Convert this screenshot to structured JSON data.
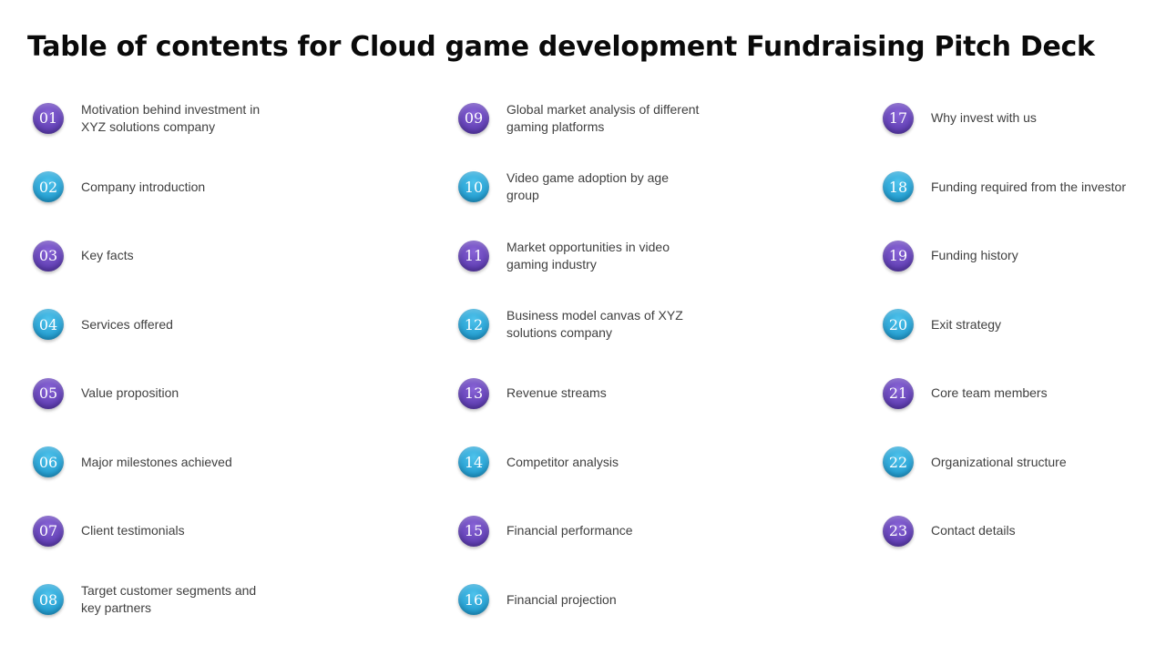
{
  "title": "Table of contents for Cloud game development Fundraising Pitch Deck",
  "colors": {
    "purple": "#5d3cb0",
    "blue": "#229ccf"
  },
  "columns": [
    [
      {
        "num": "01",
        "label": "Motivation behind investment in XYZ solutions company",
        "color": "purple"
      },
      {
        "num": "02",
        "label": "Company introduction",
        "color": "blue"
      },
      {
        "num": "03",
        "label": "Key facts",
        "color": "purple"
      },
      {
        "num": "04",
        "label": "Services offered",
        "color": "blue"
      },
      {
        "num": "05",
        "label": "Value proposition",
        "color": "purple"
      },
      {
        "num": "06",
        "label": "Major milestones achieved",
        "color": "blue"
      },
      {
        "num": "07",
        "label": "Client testimonials",
        "color": "purple"
      },
      {
        "num": "08",
        "label": "Target customer segments and key partners",
        "color": "blue"
      }
    ],
    [
      {
        "num": "09",
        "label": "Global market analysis of different gaming platforms",
        "color": "purple"
      },
      {
        "num": "10",
        "label": "Video game adoption by age group",
        "color": "blue"
      },
      {
        "num": "11",
        "label": "Market opportunities in video gaming industry",
        "color": "purple"
      },
      {
        "num": "12",
        "label": "Business model canvas of XYZ solutions company",
        "color": "blue"
      },
      {
        "num": "13",
        "label": "Revenue streams",
        "color": "purple"
      },
      {
        "num": "14",
        "label": "Competitor analysis",
        "color": "blue"
      },
      {
        "num": "15",
        "label": "Financial performance",
        "color": "purple"
      },
      {
        "num": "16",
        "label": "Financial projection",
        "color": "blue"
      }
    ],
    [
      {
        "num": "17",
        "label": "Why invest with us",
        "color": "purple"
      },
      {
        "num": "18",
        "label": "Funding required from the investor",
        "color": "blue"
      },
      {
        "num": "19",
        "label": "Funding history",
        "color": "purple"
      },
      {
        "num": "20",
        "label": "Exit strategy",
        "color": "blue"
      },
      {
        "num": "21",
        "label": "Core team members",
        "color": "purple"
      },
      {
        "num": "22",
        "label": "Organizational structure",
        "color": "blue"
      },
      {
        "num": "23",
        "label": "Contact details",
        "color": "purple"
      }
    ]
  ]
}
